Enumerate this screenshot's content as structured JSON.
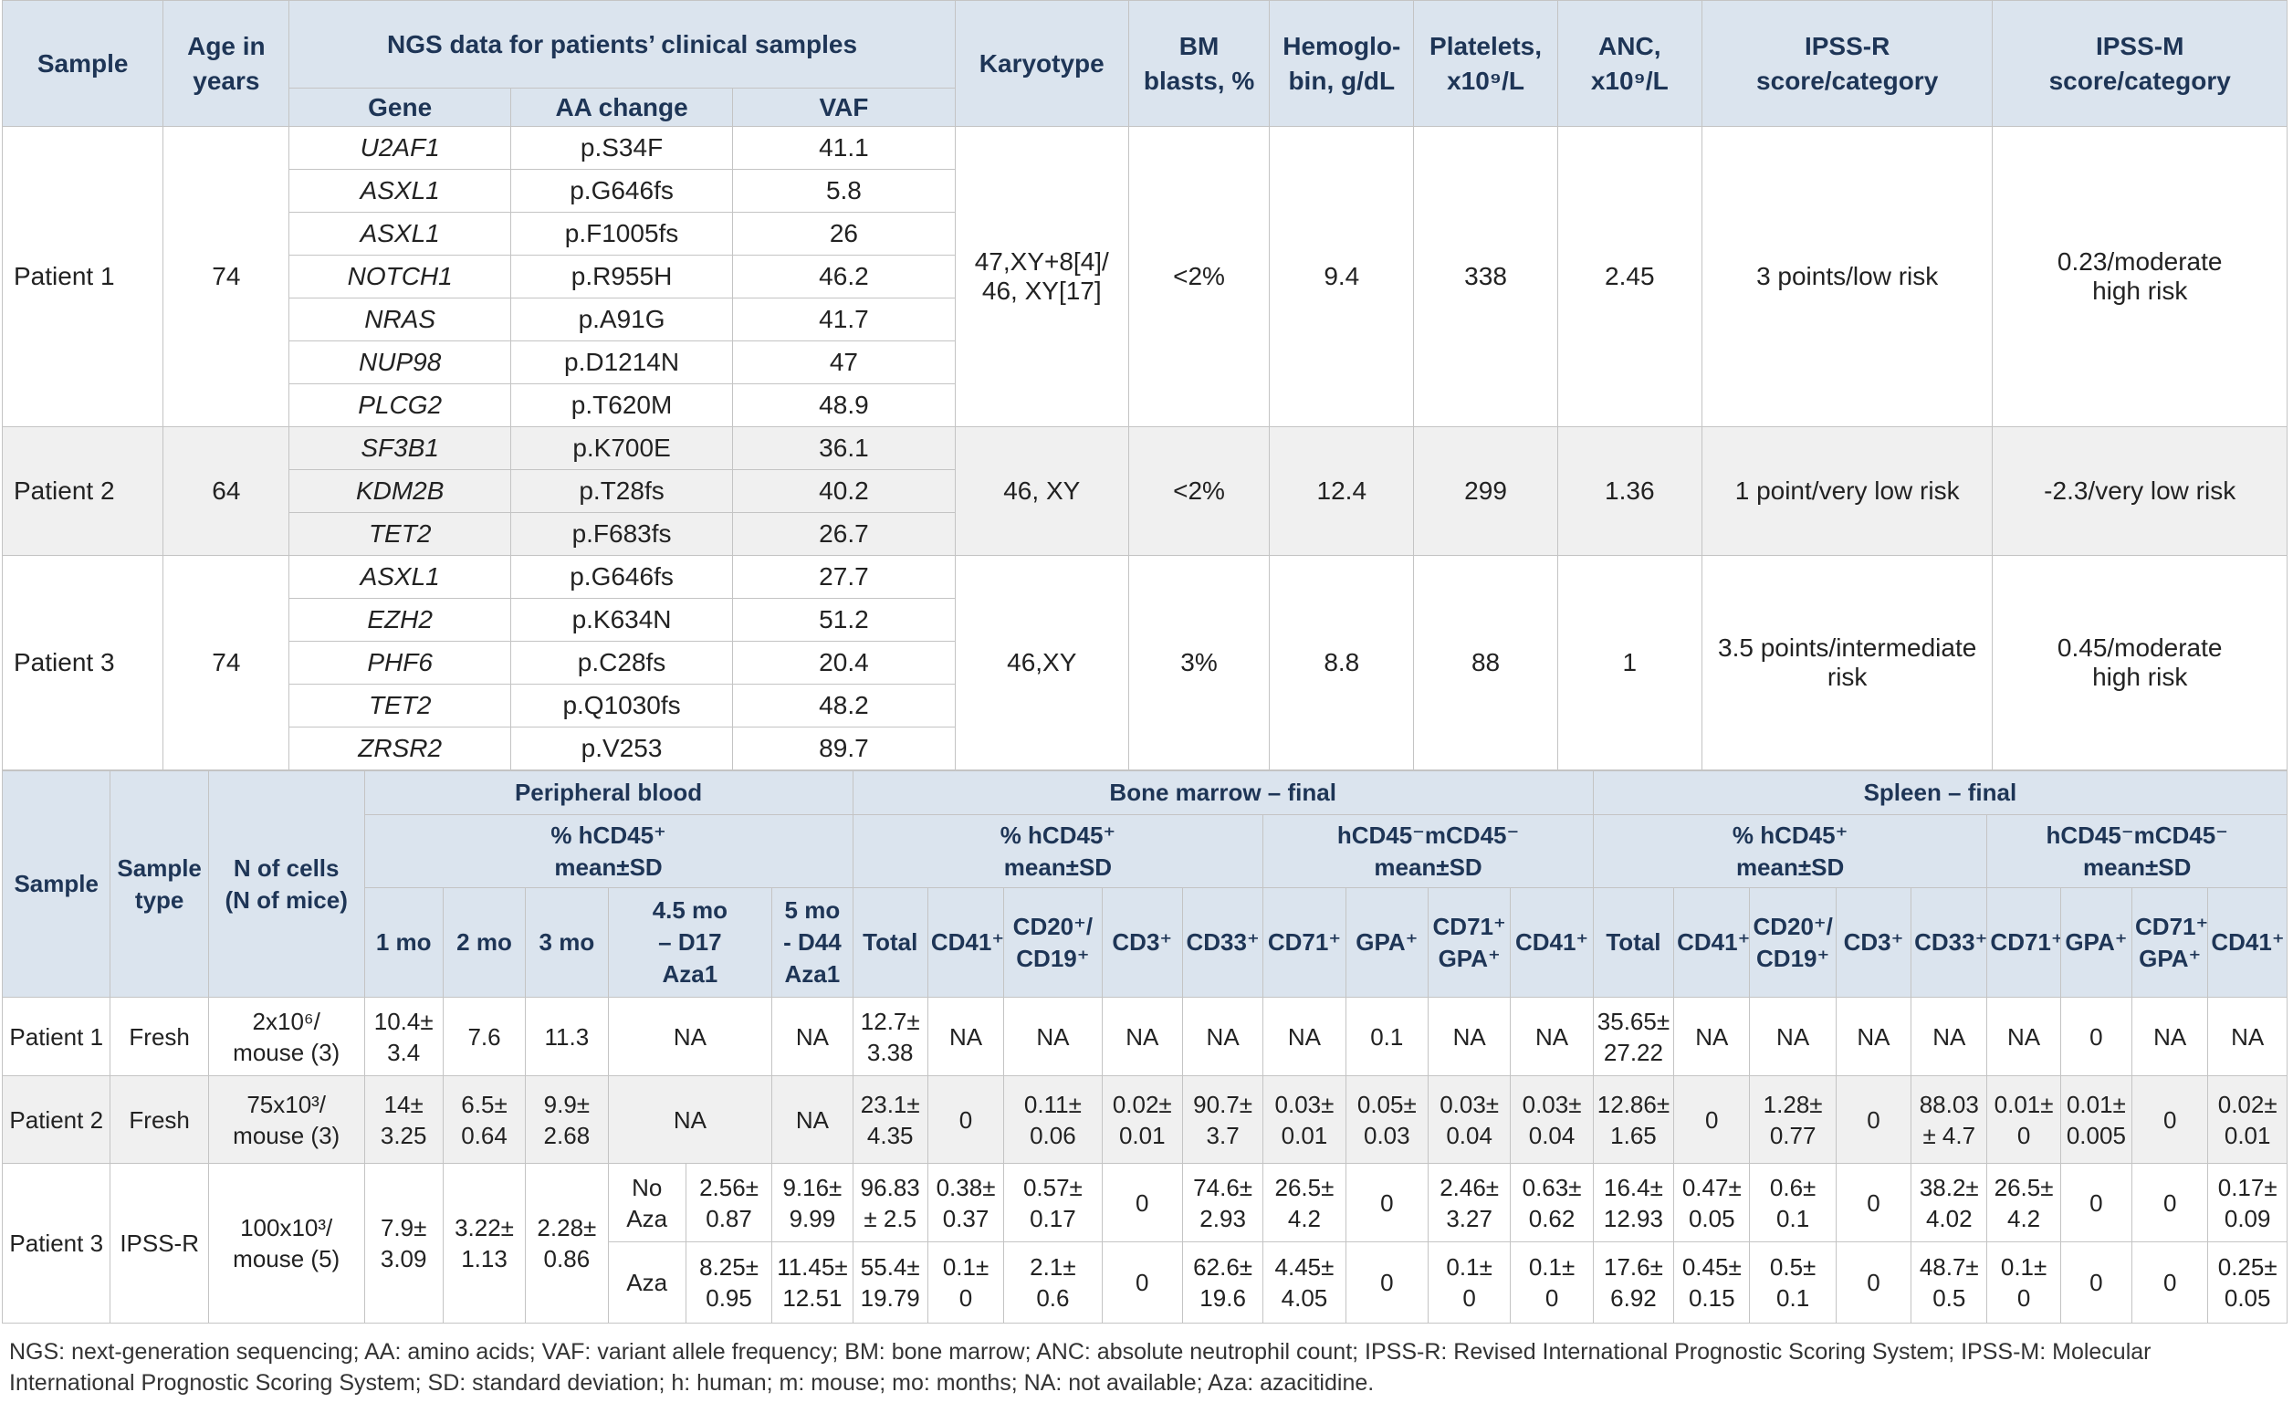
{
  "table1": {
    "headers": {
      "sample": "Sample",
      "age": "Age in\nyears",
      "ngs": "NGS data for patients’ clinical samples",
      "gene": "Gene",
      "aa_change": "AA change",
      "vaf": "VAF",
      "karyotype": "Karyotype",
      "bm_blasts": "BM\nblasts, %",
      "hemoglobin": "Hemoglo-\nbin, g/dL",
      "platelets": "Platelets,\nx10⁹/L",
      "anc": "ANC,\nx10⁹/L",
      "ipss_r": "IPSS-R\nscore/category",
      "ipss_m": "IPSS-M\nscore/category"
    },
    "patients": [
      {
        "sample": "Patient 1",
        "age": "74",
        "mutations": [
          {
            "gene": "U2AF1",
            "aa": "p.S34F",
            "vaf": "41.1"
          },
          {
            "gene": "ASXL1",
            "aa": "p.G646fs",
            "vaf": "5.8"
          },
          {
            "gene": "ASXL1",
            "aa": "p.F1005fs",
            "vaf": "26"
          },
          {
            "gene": "NOTCH1",
            "aa": "p.R955H",
            "vaf": "46.2"
          },
          {
            "gene": "NRAS",
            "aa": "p.A91G",
            "vaf": "41.7"
          },
          {
            "gene": "NUP98",
            "aa": "p.D1214N",
            "vaf": "47"
          },
          {
            "gene": "PLCG2",
            "aa": "p.T620M",
            "vaf": "48.9"
          }
        ],
        "karyotype": "47,XY+8[4]/\n46, XY[17]",
        "bm_blasts": "<2%",
        "hemoglobin": "9.4",
        "platelets": "338",
        "anc": "2.45",
        "ipss_r": "3 points/low risk",
        "ipss_m": "0.23/moderate\nhigh risk"
      },
      {
        "sample": "Patient 2",
        "age": "64",
        "mutations": [
          {
            "gene": "SF3B1",
            "aa": "p.K700E",
            "vaf": "36.1"
          },
          {
            "gene": "KDM2B",
            "aa": "p.T28fs",
            "vaf": "40.2"
          },
          {
            "gene": "TET2",
            "aa": "p.F683fs",
            "vaf": "26.7"
          }
        ],
        "karyotype": "46, XY",
        "bm_blasts": "<2%",
        "hemoglobin": "12.4",
        "platelets": "299",
        "anc": "1.36",
        "ipss_r": "1 point/very low risk",
        "ipss_m": "-2.3/very low risk"
      },
      {
        "sample": "Patient 3",
        "age": "74",
        "mutations": [
          {
            "gene": "ASXL1",
            "aa": "p.G646fs",
            "vaf": "27.7"
          },
          {
            "gene": "EZH2",
            "aa": "p.K634N",
            "vaf": "51.2"
          },
          {
            "gene": "PHF6",
            "aa": "p.C28fs",
            "vaf": "20.4"
          },
          {
            "gene": "TET2",
            "aa": "p.Q1030fs",
            "vaf": "48.2"
          },
          {
            "gene": "ZRSR2",
            "aa": "p.V253",
            "vaf": "89.7"
          }
        ],
        "karyotype": "46,XY",
        "bm_blasts": "3%",
        "hemoglobin": "8.8",
        "platelets": "88",
        "anc": "1",
        "ipss_r": "3.5 points/intermediate\nrisk",
        "ipss_m": "0.45/moderate\nhigh risk"
      }
    ]
  },
  "table2": {
    "headers": {
      "sample": "Sample",
      "sample_type": "Sample\ntype",
      "n_cells": "N of cells\n(N of mice)",
      "peripheral_blood": "Peripheral blood",
      "bone_marrow": "Bone marrow – final",
      "spleen": "Spleen – final",
      "pb_hcd45": "% hCD45⁺\nmean±SD",
      "bm_hcd45": "% hCD45⁺\nmean±SD",
      "bm_neg": "hCD45⁻mCD45⁻\nmean±SD",
      "sp_hcd45": "% hCD45⁺\nmean±SD",
      "sp_neg": "hCD45⁻mCD45⁻\nmean±SD",
      "pb_cols": [
        "1 mo",
        "2 mo",
        "3 mo",
        "4.5 mo\n– D17\nAza1",
        "5 mo\n- D44\nAza1"
      ],
      "bm_cols": [
        "Total",
        "CD41⁺",
        "CD20⁺/\nCD19⁺",
        "CD3⁺",
        "CD33⁺",
        "CD71⁺",
        "GPA⁺",
        "CD71⁺\nGPA⁺",
        "CD41⁺"
      ],
      "spleen_cols": [
        "Total",
        "CD41⁺",
        "CD20⁺/\nCD19⁺",
        "CD3⁺",
        "CD33⁺",
        "CD71⁺",
        "GPA⁺",
        "CD71⁺\nGPA⁺",
        "CD41⁺"
      ]
    },
    "rows": [
      {
        "sample": "Patient 1",
        "sample_type": "Fresh",
        "n_cells": "2x10⁶/\nmouse (3)",
        "pb": [
          "10.4±\n3.4",
          "7.6",
          "11.3"
        ],
        "arms": [
          {
            "d17": "NA",
            "d44": "NA",
            "bm": [
              "12.7±\n3.38",
              "NA",
              "NA",
              "NA",
              "NA",
              "NA",
              "0.1",
              "NA",
              "NA"
            ],
            "spleen": [
              "35.65±\n27.22",
              "NA",
              "NA",
              "NA",
              "NA",
              "NA",
              "0",
              "NA",
              "NA"
            ]
          }
        ]
      },
      {
        "sample": "Patient 2",
        "sample_type": "Fresh",
        "n_cells": "75x10³/\nmouse (3)",
        "pb": [
          "14±\n3.25",
          "6.5±\n0.64",
          "9.9±\n2.68"
        ],
        "arms": [
          {
            "d17": "NA",
            "d44": "NA",
            "bm": [
              "23.1±\n4.35",
              "0",
              "0.11±\n0.06",
              "0.02±\n0.01",
              "90.7±\n3.7",
              "0.03±\n0.01",
              "0.05±\n0.03",
              "0.03±\n0.04",
              "0.03±\n0.04"
            ],
            "spleen": [
              "12.86±\n1.65",
              "0",
              "1.28±\n0.77",
              "0",
              "88.03\n± 4.7",
              "0.01±\n0",
              "0.01±\n0.005",
              "0",
              "0.02±\n0.01"
            ]
          }
        ]
      },
      {
        "sample": "Patient 3",
        "sample_type": "IPSS-R",
        "n_cells": "100x10³/\nmouse (5)",
        "pb": [
          "7.9±\n3.09",
          "3.22±\n1.13",
          "2.28±\n0.86"
        ],
        "arms": [
          {
            "label": "No\nAza",
            "d17": "2.56±\n0.87",
            "d44": "9.16±\n9.99",
            "bm": [
              "96.83\n± 2.5",
              "0.38±\n0.37",
              "0.57±\n0.17",
              "0",
              "74.6±\n2.93",
              "26.5±\n4.2",
              "0",
              "2.46±\n3.27",
              "0.63±\n0.62"
            ],
            "spleen": [
              "16.4±\n12.93",
              "0.47±\n0.05",
              "0.6±\n0.1",
              "0",
              "38.2±\n4.02",
              "26.5±\n4.2",
              "0",
              "0",
              "0.17±\n0.09"
            ]
          },
          {
            "label": "Aza",
            "d17": "8.25±\n0.95",
            "d44": "11.45±\n12.51",
            "bm": [
              "55.4±\n19.79",
              "0.1±\n0",
              "2.1±\n0.6",
              "0",
              "62.6±\n19.6",
              "4.45±\n4.05",
              "0",
              "0.1±\n0",
              "0.1±\n0"
            ],
            "spleen": [
              "17.6±\n6.92",
              "0.45±\n0.15",
              "0.5±\n0.1",
              "0",
              "48.7±\n0.5",
              "0.1±\n0",
              "0",
              "0",
              "0.25±\n0.05"
            ]
          }
        ]
      }
    ]
  },
  "footnote": "NGS: next-generation sequencing; AA: amino acids; VAF: variant allele frequency; BM: bone marrow; ANC: absolute neutrophil count; IPSS-R: Revised International Prognostic Scoring System; IPSS-M: Molecular International Prognostic Scoring System; SD: standard deviation; h: human; m: mouse; mo: months; NA: not available; Aza: azacitidine."
}
